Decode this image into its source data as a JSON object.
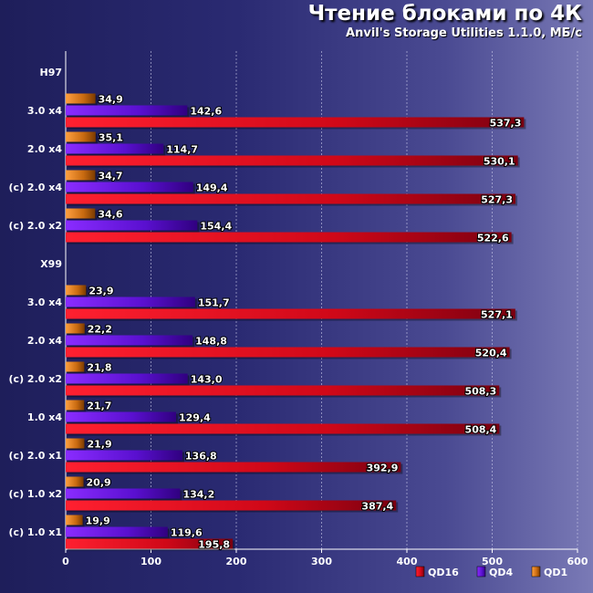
{
  "chart_data": {
    "type": "bar",
    "orientation": "horizontal",
    "title": "Чтение блоками по 4К",
    "subtitle": "Anvil's Storage Utilities 1.1.0, МБ/с",
    "xlim": [
      0,
      600
    ],
    "x_ticks": [
      "0",
      "100",
      "200",
      "300",
      "400",
      "500",
      "600"
    ],
    "grid": true,
    "legend_position": "bottom-right",
    "groups": [
      {
        "label": "H97",
        "header": true
      },
      {
        "label": "3.0 x4",
        "values": [
          537.3,
          142.6,
          34.9
        ],
        "labels": [
          "537,3",
          "142,6",
          "34,9"
        ]
      },
      {
        "label": "2.0 x4",
        "values": [
          530.1,
          114.7,
          35.1
        ],
        "labels": [
          "530,1",
          "114,7",
          "35,1"
        ]
      },
      {
        "label": "(c) 2.0 x4",
        "values": [
          527.3,
          149.4,
          34.7
        ],
        "labels": [
          "527,3",
          "149,4",
          "34,7"
        ]
      },
      {
        "label": "(c) 2.0 x2",
        "values": [
          522.6,
          154.4,
          34.6
        ],
        "labels": [
          "522,6",
          "154,4",
          "34,6"
        ]
      },
      {
        "label": "X99",
        "header": true
      },
      {
        "label": "3.0 x4",
        "values": [
          527.1,
          151.7,
          23.9
        ],
        "labels": [
          "527,1",
          "151,7",
          "23,9"
        ]
      },
      {
        "label": "2.0 x4",
        "values": [
          520.4,
          148.8,
          22.2
        ],
        "labels": [
          "520,4",
          "148,8",
          "22,2"
        ]
      },
      {
        "label": "(c) 2.0 x2",
        "values": [
          508.3,
          143.0,
          21.8
        ],
        "labels": [
          "508,3",
          "143,0",
          "21,8"
        ]
      },
      {
        "label": "1.0 x4",
        "values": [
          508.4,
          129.4,
          21.7
        ],
        "labels": [
          "508,4",
          "129,4",
          "21,7"
        ]
      },
      {
        "label": "(c) 2.0 x1",
        "values": [
          392.9,
          136.8,
          21.9
        ],
        "labels": [
          "392,9",
          "136,8",
          "21,9"
        ]
      },
      {
        "label": "(c) 1.0 x2",
        "values": [
          387.4,
          134.2,
          20.9
        ],
        "labels": [
          "387,4",
          "134,2",
          "20,9"
        ]
      },
      {
        "label": "(c) 1.0 x1",
        "values": [
          195.8,
          119.6,
          19.9
        ],
        "labels": [
          "195,8",
          "119,6",
          "19,9"
        ]
      }
    ],
    "series": [
      {
        "name": "QD16",
        "color": "#e01020"
      },
      {
        "name": "QD4",
        "color": "#6a14d8"
      },
      {
        "name": "QD1",
        "color": "#d07818"
      }
    ]
  }
}
